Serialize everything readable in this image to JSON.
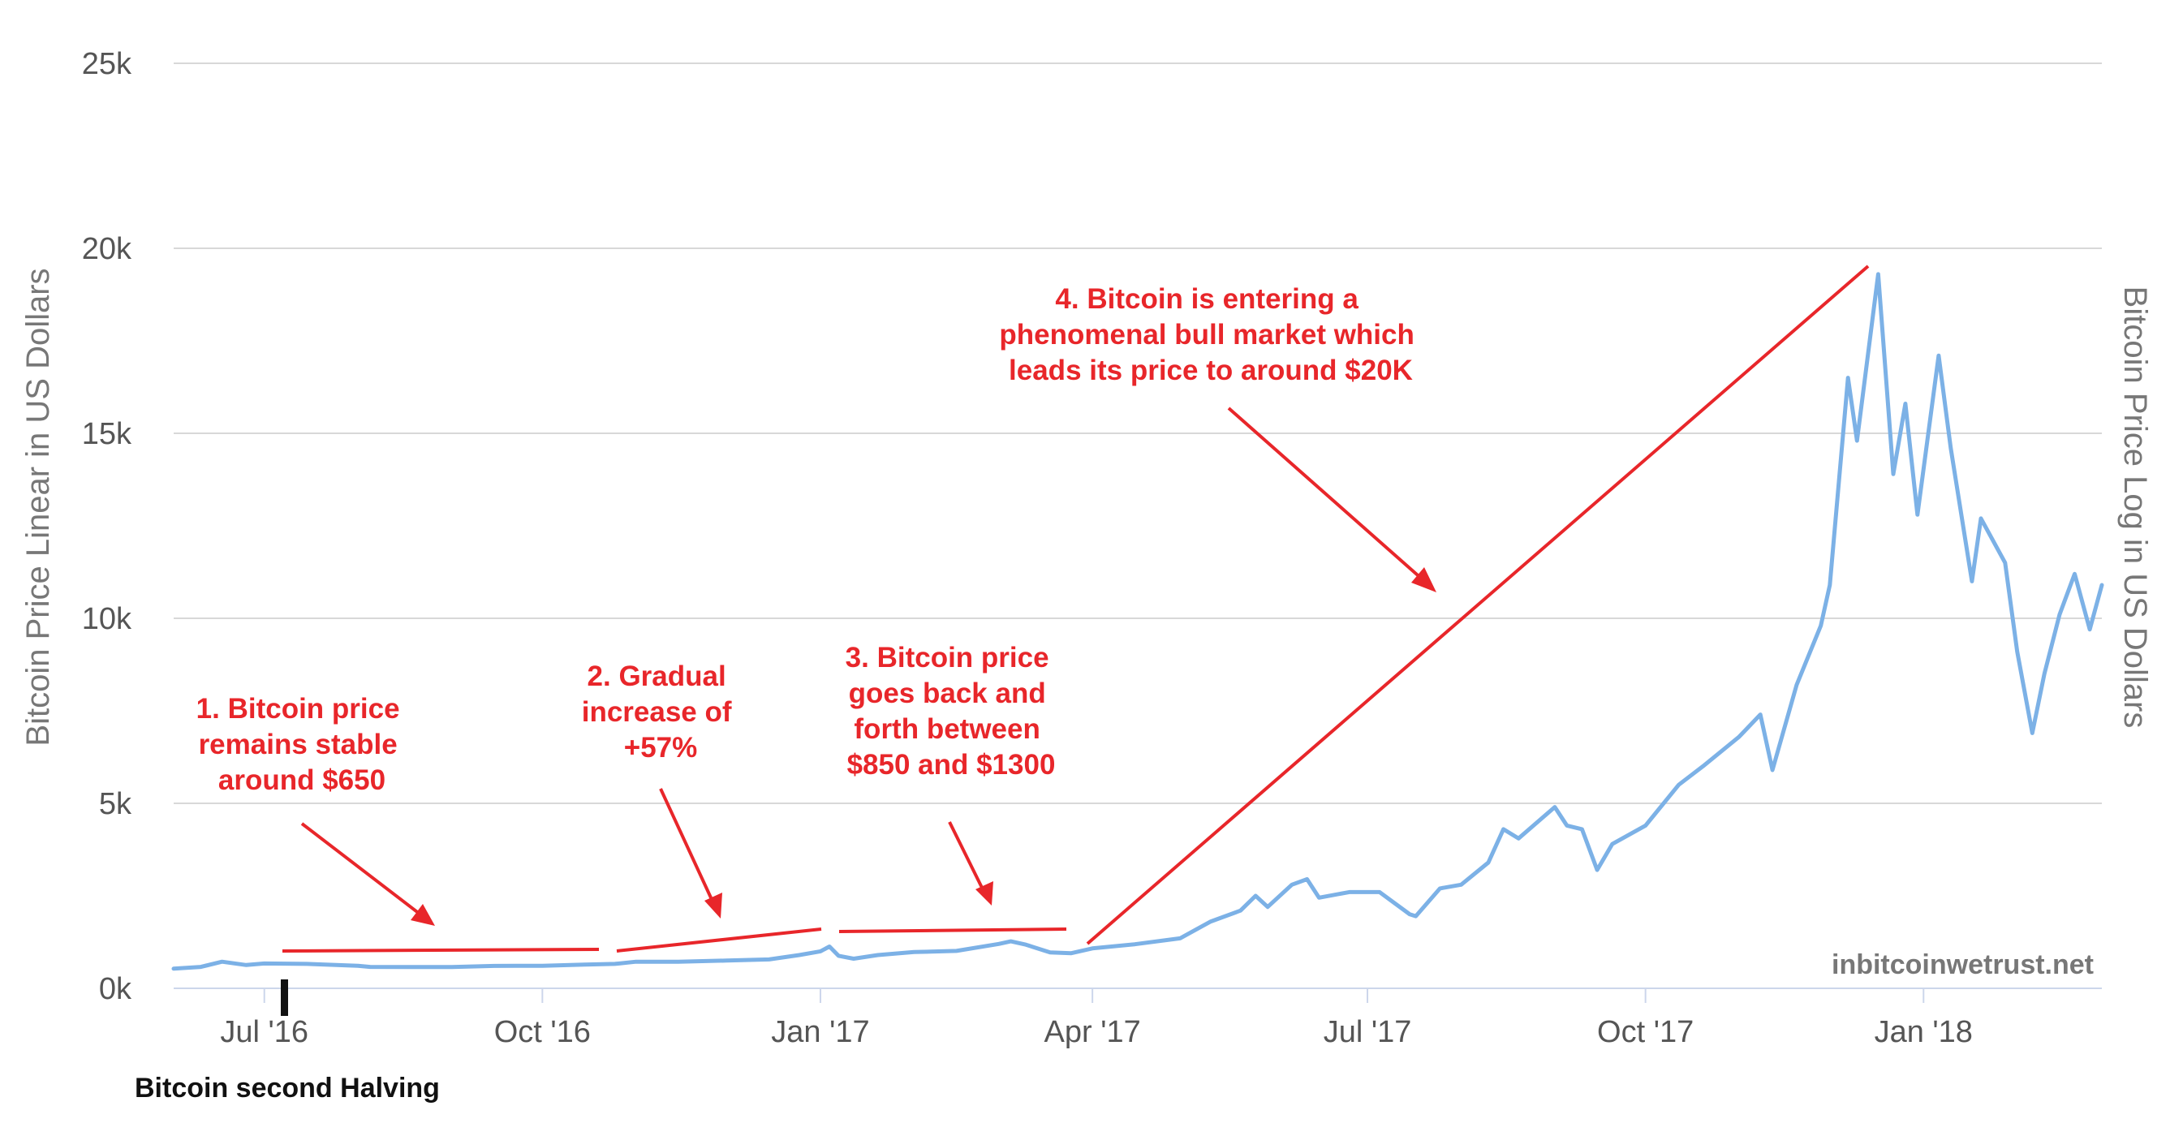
{
  "chart_data": {
    "type": "line",
    "y_left_label": "Bitcoin Price Linear in US Dollars",
    "y_right_label": "Bitcoin Price Log in US Dollars",
    "ylim": [
      0,
      25000
    ],
    "xlim": [
      "2016-06-01",
      "2018-03-01"
    ],
    "y_ticks": [
      {
        "value": 0,
        "label": "0k"
      },
      {
        "value": 5000,
        "label": "5k"
      },
      {
        "value": 10000,
        "label": "10k"
      },
      {
        "value": 15000,
        "label": "15k"
      },
      {
        "value": 20000,
        "label": "20k"
      },
      {
        "value": 25000,
        "label": "25k"
      }
    ],
    "x_ticks": [
      {
        "date": "2016-07-01",
        "label": "Jul '16"
      },
      {
        "date": "2016-10-01",
        "label": "Oct '16"
      },
      {
        "date": "2017-01-01",
        "label": "Jan '17"
      },
      {
        "date": "2017-04-01",
        "label": "Apr '17"
      },
      {
        "date": "2017-07-01",
        "label": "Jul '17"
      },
      {
        "date": "2017-10-01",
        "label": "Oct '17"
      },
      {
        "date": "2018-01-01",
        "label": "Jan '18"
      }
    ],
    "grid": true,
    "line_color": "#7cb1e6",
    "annotation_color": "#e8262a",
    "series": [
      {
        "name": "",
        "points": [
          [
            "2016-06-01",
            530
          ],
          [
            "2016-06-10",
            580
          ],
          [
            "2016-06-17",
            720
          ],
          [
            "2016-06-25",
            630
          ],
          [
            "2016-07-01",
            670
          ],
          [
            "2016-07-15",
            660
          ],
          [
            "2016-08-01",
            610
          ],
          [
            "2016-08-05",
            580
          ],
          [
            "2016-08-20",
            575
          ],
          [
            "2016-09-01",
            575
          ],
          [
            "2016-09-15",
            605
          ],
          [
            "2016-10-01",
            610
          ],
          [
            "2016-10-15",
            640
          ],
          [
            "2016-10-25",
            660
          ],
          [
            "2016-11-01",
            720
          ],
          [
            "2016-11-15",
            720
          ],
          [
            "2016-12-01",
            750
          ],
          [
            "2016-12-15",
            780
          ],
          [
            "2016-12-25",
            900
          ],
          [
            "2017-01-01",
            1000
          ],
          [
            "2017-01-04",
            1130
          ],
          [
            "2017-01-07",
            880
          ],
          [
            "2017-01-12",
            800
          ],
          [
            "2017-01-20",
            900
          ],
          [
            "2017-02-01",
            980
          ],
          [
            "2017-02-15",
            1010
          ],
          [
            "2017-03-01",
            1200
          ],
          [
            "2017-03-05",
            1270
          ],
          [
            "2017-03-10",
            1180
          ],
          [
            "2017-03-18",
            970
          ],
          [
            "2017-03-25",
            950
          ],
          [
            "2017-04-01",
            1080
          ],
          [
            "2017-04-15",
            1190
          ],
          [
            "2017-04-30",
            1350
          ],
          [
            "2017-05-10",
            1800
          ],
          [
            "2017-05-20",
            2100
          ],
          [
            "2017-05-25",
            2500
          ],
          [
            "2017-05-29",
            2200
          ],
          [
            "2017-06-06",
            2800
          ],
          [
            "2017-06-11",
            2950
          ],
          [
            "2017-06-15",
            2450
          ],
          [
            "2017-06-25",
            2600
          ],
          [
            "2017-07-05",
            2600
          ],
          [
            "2017-07-15",
            2000
          ],
          [
            "2017-07-17",
            1950
          ],
          [
            "2017-07-25",
            2700
          ],
          [
            "2017-08-01",
            2800
          ],
          [
            "2017-08-10",
            3400
          ],
          [
            "2017-08-15",
            4300
          ],
          [
            "2017-08-20",
            4050
          ],
          [
            "2017-09-01",
            4900
          ],
          [
            "2017-09-05",
            4400
          ],
          [
            "2017-09-10",
            4300
          ],
          [
            "2017-09-15",
            3200
          ],
          [
            "2017-09-20",
            3900
          ],
          [
            "2017-10-01",
            4400
          ],
          [
            "2017-10-12",
            5500
          ],
          [
            "2017-10-20",
            6000
          ],
          [
            "2017-11-01",
            6800
          ],
          [
            "2017-11-08",
            7400
          ],
          [
            "2017-11-12",
            5900
          ],
          [
            "2017-11-20",
            8200
          ],
          [
            "2017-11-28",
            9800
          ],
          [
            "2017-12-01",
            10900
          ],
          [
            "2017-12-07",
            16500
          ],
          [
            "2017-12-10",
            14800
          ],
          [
            "2017-12-17",
            19300
          ],
          [
            "2017-12-22",
            13900
          ],
          [
            "2017-12-26",
            15800
          ],
          [
            "2017-12-30",
            12800
          ],
          [
            "2018-01-06",
            17100
          ],
          [
            "2018-01-10",
            14600
          ],
          [
            "2018-01-17",
            11000
          ],
          [
            "2018-01-20",
            12700
          ],
          [
            "2018-01-28",
            11500
          ],
          [
            "2018-02-01",
            9100
          ],
          [
            "2018-02-06",
            6900
          ],
          [
            "2018-02-10",
            8500
          ],
          [
            "2018-02-15",
            10100
          ],
          [
            "2018-02-20",
            11200
          ],
          [
            "2018-02-25",
            9700
          ],
          [
            "2018-03-01",
            10900
          ]
        ]
      }
    ],
    "annotations": [
      {
        "text": [
          "1. Bitcoin price",
          "remains stable",
          "around $650"
        ]
      },
      {
        "text": [
          "2. Gradual",
          "increase of",
          "+57%"
        ]
      },
      {
        "text": [
          "3. Bitcoin price",
          "goes back and",
          "forth between",
          "$850 and $1300"
        ]
      },
      {
        "text": [
          "4. Bitcoin is entering a",
          "phenomenal bull market which",
          "leads its price to around $20K"
        ]
      }
    ],
    "halving_label": "Bitcoin second Halving",
    "watermark": "inbitcoinwetrust.net"
  }
}
